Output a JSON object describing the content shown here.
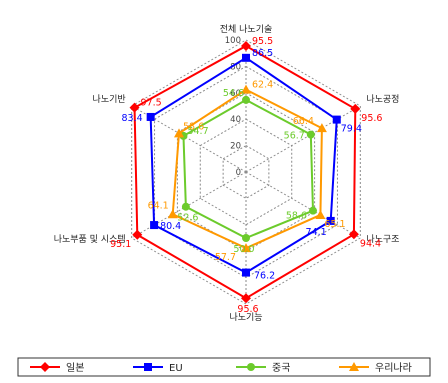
{
  "chart_data": {
    "type": "radar",
    "axes": [
      "전체 나노기술",
      "나노공정",
      "나노구조",
      "나노기능",
      "나노부품 및 시스템",
      "나노기반"
    ],
    "r_ticks": [
      "0",
      "20",
      "40",
      "60",
      "80",
      "100"
    ],
    "r_range": [
      0,
      100
    ],
    "grid": true,
    "legend_position": "bottom",
    "series": [
      {
        "name": "일본",
        "color": "#ff0000",
        "marker": "diamond",
        "values": [
          95.5,
          95.6,
          94.4,
          95.6,
          95.1,
          97.5
        ]
      },
      {
        "name": "EU",
        "color": "#0000ff",
        "marker": "square",
        "values": [
          86.5,
          79.4,
          74.1,
          76.2,
          80.4,
          83.4
        ]
      },
      {
        "name": "중국",
        "color": "#6ccb2c",
        "marker": "circle",
        "values": [
          54.6,
          56.7,
          58.6,
          50.0,
          52.6,
          54.7
        ]
      },
      {
        "name": "우리나라",
        "color": "#ff9900",
        "marker": "triangle",
        "values": [
          62.4,
          66.4,
          65.1,
          57.7,
          64.1,
          58.6
        ]
      }
    ]
  }
}
